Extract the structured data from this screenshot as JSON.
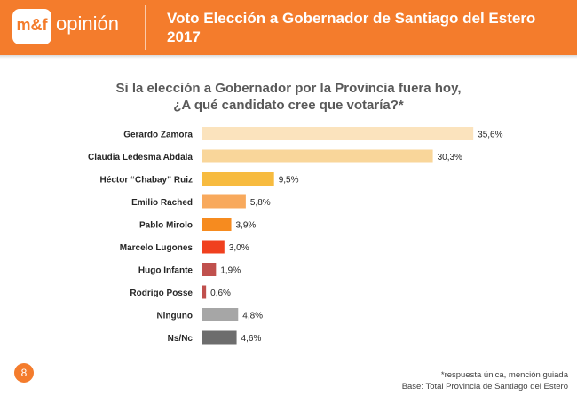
{
  "header": {
    "logo_mf": "m&f",
    "logo_word": "opinión",
    "title_line1": "Voto Elección a Gobernador de Santiago del Estero",
    "title_line2": "2017",
    "color": "#f47c2c"
  },
  "question": {
    "line1": "Si la elección a Gobernador por la Provincia fuera hoy,",
    "line2": "¿A qué candidato cree que votaría?*"
  },
  "chart_data": {
    "type": "bar",
    "orientation": "horizontal",
    "categories": [
      "Gerardo Zamora",
      "Claudia Ledesma Abdala",
      "Héctor “Chabay” Ruiz",
      "Emilio Rached",
      "Pablo Mirolo",
      "Marcelo Lugones",
      "Hugo Infante",
      "Rodrigo Posse",
      "Ninguno",
      "Ns/Nc"
    ],
    "values": [
      35.6,
      30.3,
      9.5,
      5.8,
      3.9,
      3.0,
      1.9,
      0.6,
      4.8,
      4.6
    ],
    "value_labels": [
      "35,6%",
      "30,3%",
      "9,5%",
      "5,8%",
      "3,9%",
      "3,0%",
      "1,9%",
      "0,6%",
      "4,8%",
      "4,6%"
    ],
    "colors": [
      "#fbe3bd",
      "#f9d69a",
      "#f7bb3f",
      "#f8a95c",
      "#f68b1f",
      "#f0401e",
      "#c0504d",
      "#c0504d",
      "#a6a6a6",
      "#6d6d6d"
    ],
    "title": "Si la elección a Gobernador por la Provincia fuera hoy, ¿A qué candidato cree que votaría?*",
    "xlabel": "",
    "ylabel": "",
    "grid": false
  },
  "footer": {
    "page_number": "8",
    "note1": "*respuesta única, mención guiada",
    "note2": "Base: Total Provincia de Santiago del Estero"
  }
}
